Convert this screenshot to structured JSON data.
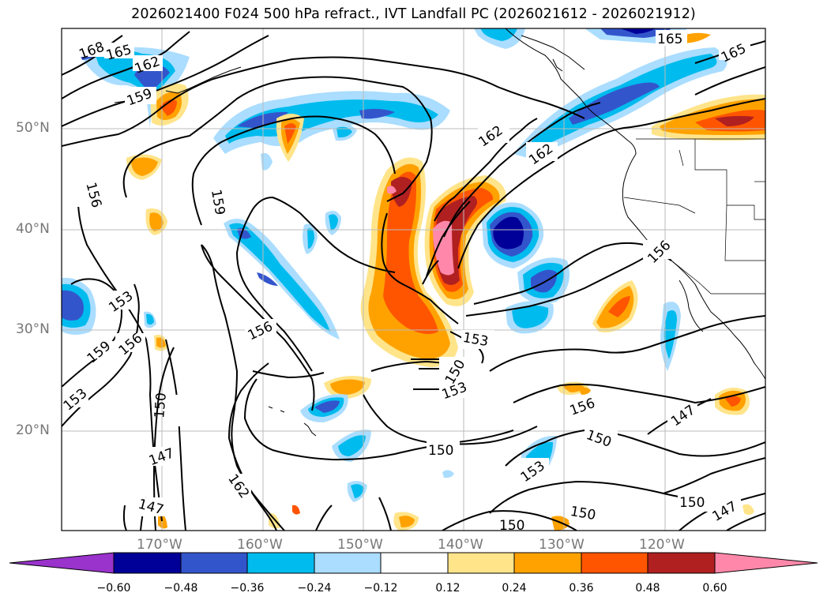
{
  "title": "2026021400 F024 500 hPa refract., IVT Landfall PC (2026021612 - 2026021912)",
  "map": {
    "lat_labels": [
      "50°N",
      "40°N",
      "30°N",
      "20°N"
    ],
    "lon_labels": [
      "170°W",
      "160°W",
      "150°W",
      "140°W",
      "130°W",
      "120°W"
    ],
    "contour_labels": [
      "168",
      "165",
      "162",
      "159",
      "156",
      "159",
      "162",
      "159",
      "162",
      "165",
      "165",
      "156",
      "153",
      "156",
      "159",
      "153",
      "150",
      "147",
      "147",
      "162",
      "156",
      "153",
      "150",
      "153",
      "150",
      "156",
      "150",
      "153",
      "150",
      "150",
      "150",
      "147",
      "147",
      "156"
    ]
  },
  "colorbar": {
    "ticks": [
      "−0.60",
      "−0.48",
      "−0.36",
      "−0.24",
      "−0.12",
      "0.12",
      "0.24",
      "0.36",
      "0.48",
      "0.60"
    ],
    "colors": [
      "#9933cc",
      "#000099",
      "#3355cc",
      "#00bbee",
      "#aaddff",
      "#ffffff",
      "#ffe48a",
      "#ffa200",
      "#ff5500",
      "#b02020",
      "#ff88aa",
      "#ff88aa"
    ]
  }
}
